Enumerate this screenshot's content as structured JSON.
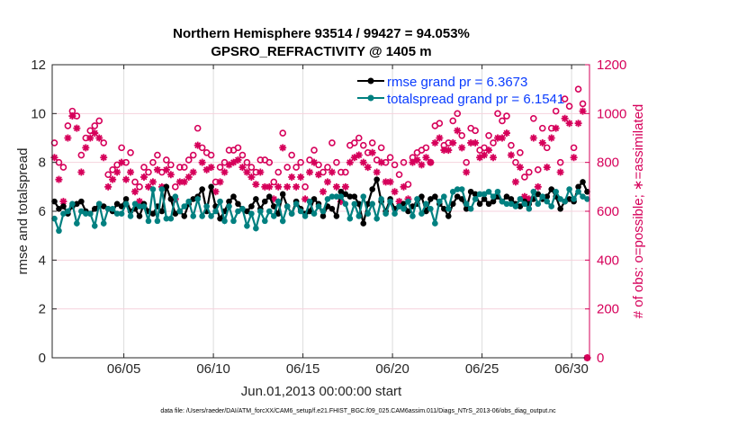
{
  "chart_data": {
    "type": "line",
    "title": [
      "Northern Hemisphere 93514 / 99427 = 94.053%",
      "GPSRO_REFRACTIVITY @ 1405 m"
    ],
    "xlabel": "Jun.01,2013 00:00:00 start",
    "ylabel_left": "rmse and totalspread",
    "ylabel_right": "# of obs: o=possible; ∗=assimilated",
    "xlim": [
      "2013-06-01 00",
      "2013-07-01 00"
    ],
    "ylim_left": [
      0,
      12
    ],
    "ylim_right": [
      0,
      1200
    ],
    "xticks": [
      {
        "date": "2013-06-05 00",
        "label": "06/05"
      },
      {
        "date": "2013-06-10 00",
        "label": "06/10"
      },
      {
        "date": "2013-06-15 00",
        "label": "06/15"
      },
      {
        "date": "2013-06-20 00",
        "label": "06/20"
      },
      {
        "date": "2013-06-25 00",
        "label": "06/25"
      },
      {
        "date": "2013-06-30 00",
        "label": "06/30"
      }
    ],
    "yticks_left": [
      "0",
      "2",
      "4",
      "6",
      "8",
      "10",
      "12"
    ],
    "yticks_right": [
      "0",
      "200",
      "400",
      "600",
      "800",
      "1000",
      "1200"
    ],
    "grid": true,
    "legend_placement": "top-right",
    "colors": {
      "rmse": "#000000",
      "totalspread": "#008080",
      "obs": "#d6005a",
      "legend_text": "#0a3cff"
    },
    "x": [
      "2013-06-01 03",
      "2013-06-01 09",
      "2013-06-01 15",
      "2013-06-01 21",
      "2013-06-02 03",
      "2013-06-02 09",
      "2013-06-02 15",
      "2013-06-02 21",
      "2013-06-03 03",
      "2013-06-03 09",
      "2013-06-03 15",
      "2013-06-03 21",
      "2013-06-04 03",
      "2013-06-04 09",
      "2013-06-04 15",
      "2013-06-04 21",
      "2013-06-05 03",
      "2013-06-05 09",
      "2013-06-05 15",
      "2013-06-05 21",
      "2013-06-06 03",
      "2013-06-06 09",
      "2013-06-06 15",
      "2013-06-06 21",
      "2013-06-07 03",
      "2013-06-07 09",
      "2013-06-07 15",
      "2013-06-07 21",
      "2013-06-08 03",
      "2013-06-08 09",
      "2013-06-08 15",
      "2013-06-08 21",
      "2013-06-09 03",
      "2013-06-09 09",
      "2013-06-09 15",
      "2013-06-09 21",
      "2013-06-10 03",
      "2013-06-10 09",
      "2013-06-10 15",
      "2013-06-10 21",
      "2013-06-11 03",
      "2013-06-11 09",
      "2013-06-11 15",
      "2013-06-11 21",
      "2013-06-12 03",
      "2013-06-12 09",
      "2013-06-12 15",
      "2013-06-12 21",
      "2013-06-13 03",
      "2013-06-13 09",
      "2013-06-13 15",
      "2013-06-13 21",
      "2013-06-14 03",
      "2013-06-14 09",
      "2013-06-14 15",
      "2013-06-14 21",
      "2013-06-15 03",
      "2013-06-15 09",
      "2013-06-15 15",
      "2013-06-15 21",
      "2013-06-16 03",
      "2013-06-16 09",
      "2013-06-16 15",
      "2013-06-16 21",
      "2013-06-17 03",
      "2013-06-17 09",
      "2013-06-17 15",
      "2013-06-17 21",
      "2013-06-18 03",
      "2013-06-18 09",
      "2013-06-18 15",
      "2013-06-18 21",
      "2013-06-19 03",
      "2013-06-19 09",
      "2013-06-19 15",
      "2013-06-19 21",
      "2013-06-20 03",
      "2013-06-20 09",
      "2013-06-20 15",
      "2013-06-20 21",
      "2013-06-21 03",
      "2013-06-21 09",
      "2013-06-21 15",
      "2013-06-21 21",
      "2013-06-22 03",
      "2013-06-22 09",
      "2013-06-22 15",
      "2013-06-22 21",
      "2013-06-23 03",
      "2013-06-23 09",
      "2013-06-23 15",
      "2013-06-23 21",
      "2013-06-24 03",
      "2013-06-24 09",
      "2013-06-24 15",
      "2013-06-24 21",
      "2013-06-25 03",
      "2013-06-25 09",
      "2013-06-25 15",
      "2013-06-25 21",
      "2013-06-26 03",
      "2013-06-26 09",
      "2013-06-26 15",
      "2013-06-26 21",
      "2013-06-27 03",
      "2013-06-27 09",
      "2013-06-27 15",
      "2013-06-27 21",
      "2013-06-28 03",
      "2013-06-28 09",
      "2013-06-28 15",
      "2013-06-28 21",
      "2013-06-29 03",
      "2013-06-29 09",
      "2013-06-29 15",
      "2013-06-29 21",
      "2013-06-30 03",
      "2013-06-30 09",
      "2013-06-30 15",
      "2013-06-30 21"
    ],
    "series": [
      {
        "name": "rmse grand pr = 6.3673",
        "axis": "left",
        "values": [
          6.4,
          6.1,
          6.2,
          5.9,
          6.2,
          6.3,
          6.4,
          6.0,
          5.9,
          6.1,
          6.3,
          6.2,
          6.1,
          6.0,
          6.3,
          6.2,
          6.5,
          6.0,
          6.1,
          5.8,
          6.3,
          6.0,
          5.9,
          6.2,
          6.0,
          7.0,
          6.5,
          5.9,
          6.0,
          5.8,
          6.3,
          6.5,
          6.6,
          6.9,
          6.0,
          7.0,
          6.2,
          5.7,
          6.0,
          6.4,
          6.6,
          6.3,
          6.1,
          6.0,
          6.2,
          6.5,
          6.1,
          6.4,
          6.6,
          6.2,
          5.9,
          6.7,
          6.2,
          5.9,
          6.4,
          6.1,
          5.9,
          6.0,
          6.5,
          6.3,
          5.8,
          6.2,
          6.1,
          5.8,
          6.8,
          6.7,
          6.6,
          6.6,
          6.3,
          5.5,
          6.3,
          6.9,
          7.3,
          6.4,
          6.0,
          6.5,
          6.1,
          6.2,
          6.3,
          6.0,
          6.2,
          6.3,
          6.6,
          6.0,
          6.5,
          6.6,
          6.3,
          6.1,
          5.8,
          6.3,
          6.6,
          6.5,
          6.1,
          6.8,
          6.7,
          6.3,
          6.5,
          6.3,
          6.4,
          6.6,
          6.4,
          6.6,
          6.5,
          6.3,
          6.2,
          6.4,
          6.3,
          6.5,
          6.7,
          6.5,
          6.6,
          6.9,
          6.6,
          6.1,
          6.4,
          6.5,
          6.4,
          7.0,
          7.2,
          6.8
        ]
      },
      {
        "name": "totalspread grand pr = 6.1541",
        "axis": "left",
        "values": [
          5.7,
          5.2,
          5.9,
          6.0,
          6.3,
          5.5,
          6.0,
          5.9,
          5.9,
          5.4,
          6.3,
          5.5,
          6.1,
          6.1,
          5.9,
          5.9,
          6.3,
          5.8,
          6.3,
          6.2,
          6.2,
          5.6,
          6.9,
          5.6,
          6.9,
          5.7,
          5.7,
          6.6,
          6.0,
          6.2,
          6.4,
          5.8,
          6.5,
          5.8,
          6.2,
          5.8,
          6.0,
          6.4,
          5.6,
          6.2,
          5.6,
          6.0,
          6.1,
          5.4,
          5.9,
          5.3,
          6.0,
          5.6,
          6.0,
          5.8,
          6.4,
          5.6,
          6.2,
          5.9,
          6.3,
          6.0,
          5.8,
          6.4,
          5.9,
          6.2,
          6.0,
          6.5,
          6.6,
          6.6,
          6.6,
          6.3,
          5.7,
          6.3,
          5.8,
          6.6,
          5.9,
          6.3,
          5.7,
          6.5,
          5.9,
          6.4,
          5.9,
          6.2,
          6.1,
          6.4,
          5.8,
          6.5,
          5.9,
          6.3,
          6.1,
          5.5,
          6.4,
          6.6,
          6.1,
          6.8,
          6.9,
          6.9,
          6.3,
          6.1,
          6.5,
          6.7,
          6.7,
          6.8,
          6.6,
          6.8,
          6.4,
          6.3,
          6.3,
          6.2,
          6.5,
          6.3,
          6.1,
          6.8,
          6.3,
          6.6,
          6.4,
          6.2,
          6.8,
          6.5,
          6.4,
          6.9,
          6.5,
          6.8,
          6.6,
          6.5
        ]
      },
      {
        "name": "possible",
        "axis": "right",
        "marker": "o",
        "values": [
          880,
          800,
          780,
          950,
          1010,
          990,
          830,
          900,
          930,
          950,
          970,
          880,
          750,
          770,
          790,
          860,
          800,
          840,
          720,
          700,
          780,
          760,
          800,
          830,
          760,
          810,
          790,
          700,
          780,
          780,
          810,
          830,
          940,
          860,
          840,
          830,
          720,
          780,
          800,
          850,
          850,
          860,
          830,
          800,
          780,
          760,
          810,
          810,
          800,
          720,
          760,
          920,
          780,
          830,
          780,
          800,
          700,
          810,
          850,
          790,
          760,
          780,
          880,
          800,
          760,
          760,
          870,
          880,
          900,
          870,
          840,
          880,
          810,
          860,
          800,
          820,
          790,
          750,
          800,
          710,
          820,
          840,
          850,
          860,
          800,
          950,
          960,
          870,
          880,
          970,
          1000,
          910,
          800,
          940,
          930,
          850,
          860,
          910,
          880,
          1000,
          970,
          990,
          870,
          800,
          840,
          740,
          760,
          980,
          770,
          940,
          860,
          940,
          1010,
          800,
          1060,
          1030,
          860,
          1100,
          1040,
          0
        ]
      },
      {
        "name": "assimilated",
        "axis": "right",
        "marker": "*",
        "values": [
          820,
          730,
          640,
          900,
          990,
          940,
          760,
          860,
          900,
          920,
          900,
          820,
          700,
          730,
          760,
          800,
          730,
          760,
          680,
          640,
          740,
          700,
          720,
          770,
          700,
          770,
          750,
          650,
          720,
          720,
          740,
          760,
          870,
          800,
          770,
          780,
          680,
          720,
          760,
          790,
          800,
          810,
          780,
          760,
          740,
          710,
          760,
          700,
          700,
          650,
          700,
          860,
          700,
          740,
          700,
          740,
          650,
          760,
          800,
          750,
          680,
          720,
          760,
          700,
          640,
          700,
          800,
          820,
          830,
          800,
          780,
          840,
          760,
          800,
          720,
          720,
          680,
          640,
          700,
          650,
          800,
          810,
          790,
          820,
          800,
          880,
          900,
          850,
          850,
          880,
          930,
          860,
          760,
          880,
          880,
          820,
          830,
          850,
          820,
          900,
          900,
          920,
          830,
          720,
          780,
          660,
          650,
          900,
          700,
          880,
          780,
          900,
          940,
          760,
          980,
          960,
          820,
          960,
          1010,
          0
        ]
      }
    ]
  },
  "footer": "data file: /Users/raeder/DAI/ATM_forcXX/CAM6_setup/f.e21.FHIST_BGC.f09_025.CAM6assim.011/Diags_NTrS_2013-06/obs_diag_output.nc"
}
